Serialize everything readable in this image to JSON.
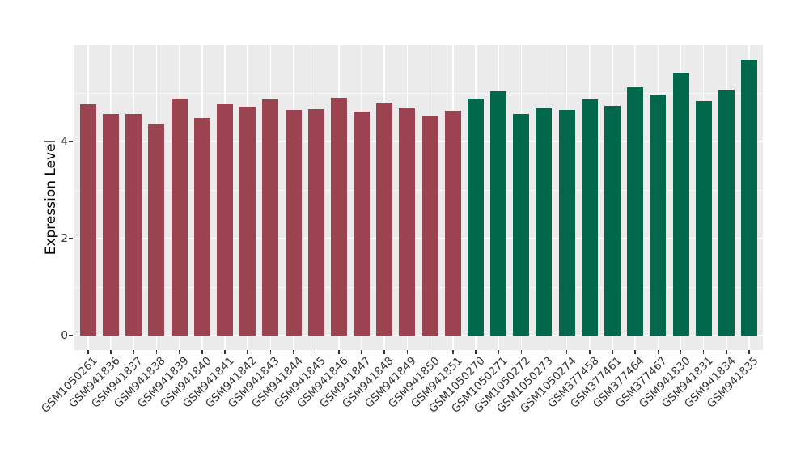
{
  "chart_data": {
    "type": "bar",
    "title": "",
    "xlabel": "",
    "ylabel": "Expression Level",
    "ylim": [
      0,
      6
    ],
    "y_major_ticks": [
      0,
      2,
      4
    ],
    "y_minor_gridlines": [
      1,
      3,
      5
    ],
    "grid": "on",
    "legend": "none",
    "panel_background": "#EBEBEB",
    "gridline_color": "#FFFFFF",
    "colors": {
      "maroon": "#9B4350",
      "green": "#01684B"
    },
    "bars": [
      {
        "label": "GSM1050261",
        "value": 4.76,
        "group": "maroon"
      },
      {
        "label": "GSM941836",
        "value": 4.56,
        "group": "maroon"
      },
      {
        "label": "GSM941837",
        "value": 4.56,
        "group": "maroon"
      },
      {
        "label": "GSM941838",
        "value": 4.37,
        "group": "maroon"
      },
      {
        "label": "GSM941839",
        "value": 4.88,
        "group": "maroon"
      },
      {
        "label": "GSM941840",
        "value": 4.48,
        "group": "maroon"
      },
      {
        "label": "GSM941841",
        "value": 4.78,
        "group": "maroon"
      },
      {
        "label": "GSM941842",
        "value": 4.72,
        "group": "maroon"
      },
      {
        "label": "GSM941843",
        "value": 4.86,
        "group": "maroon"
      },
      {
        "label": "GSM941844",
        "value": 4.65,
        "group": "maroon"
      },
      {
        "label": "GSM941845",
        "value": 4.66,
        "group": "maroon"
      },
      {
        "label": "GSM941846",
        "value": 4.9,
        "group": "maroon"
      },
      {
        "label": "GSM941847",
        "value": 4.61,
        "group": "maroon"
      },
      {
        "label": "GSM941848",
        "value": 4.8,
        "group": "maroon"
      },
      {
        "label": "GSM941849",
        "value": 4.68,
        "group": "maroon"
      },
      {
        "label": "GSM941850",
        "value": 4.51,
        "group": "maroon"
      },
      {
        "label": "GSM941851",
        "value": 4.64,
        "group": "maroon"
      },
      {
        "label": "GSM1050270",
        "value": 4.89,
        "group": "green"
      },
      {
        "label": "GSM1050271",
        "value": 5.03,
        "group": "green"
      },
      {
        "label": "GSM1050272",
        "value": 4.57,
        "group": "green"
      },
      {
        "label": "GSM1050273",
        "value": 4.68,
        "group": "green"
      },
      {
        "label": "GSM1050274",
        "value": 4.65,
        "group": "green"
      },
      {
        "label": "GSM377458",
        "value": 4.86,
        "group": "green"
      },
      {
        "label": "GSM377461",
        "value": 4.73,
        "group": "green"
      },
      {
        "label": "GSM377464",
        "value": 5.11,
        "group": "green"
      },
      {
        "label": "GSM377467",
        "value": 4.97,
        "group": "green"
      },
      {
        "label": "GSM941830",
        "value": 5.42,
        "group": "green"
      },
      {
        "label": "GSM941831",
        "value": 4.83,
        "group": "green"
      },
      {
        "label": "GSM941834",
        "value": 5.06,
        "group": "green"
      },
      {
        "label": "GSM941835",
        "value": 5.68,
        "group": "green"
      }
    ]
  }
}
